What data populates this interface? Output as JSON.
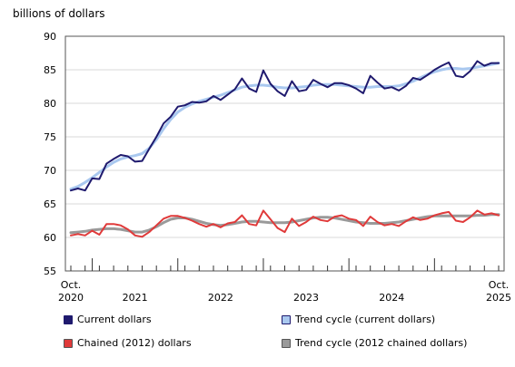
{
  "chart_data": {
    "type": "line",
    "ylabel": "billions of dollars",
    "ylim": [
      55,
      90
    ],
    "yticks": [
      55,
      60,
      65,
      70,
      75,
      80,
      85,
      90
    ],
    "grid": true,
    "x_start": "2020-10",
    "x_end": "2025-10",
    "xtick_labels": [
      {
        "line1": "Oct.",
        "line2": "2020"
      },
      {
        "line1": "",
        "line2": "2021"
      },
      {
        "line1": "",
        "line2": "2022"
      },
      {
        "line1": "",
        "line2": "2023"
      },
      {
        "line1": "",
        "line2": "2024"
      },
      {
        "line1": "Oct.",
        "line2": "2025"
      }
    ],
    "x": [
      "2020-10",
      "2020-11",
      "2020-12",
      "2021-01",
      "2021-02",
      "2021-03",
      "2021-04",
      "2021-05",
      "2021-06",
      "2021-07",
      "2021-08",
      "2021-09",
      "2021-10",
      "2021-11",
      "2021-12",
      "2022-01",
      "2022-02",
      "2022-03",
      "2022-04",
      "2022-05",
      "2022-06",
      "2022-07",
      "2022-08",
      "2022-09",
      "2022-10",
      "2022-11",
      "2022-12",
      "2023-01",
      "2023-02",
      "2023-03",
      "2023-04",
      "2023-05",
      "2023-06",
      "2023-07",
      "2023-08",
      "2023-09",
      "2023-10",
      "2023-11",
      "2023-12",
      "2024-01",
      "2024-02",
      "2024-03",
      "2024-04",
      "2024-05",
      "2024-06",
      "2024-07",
      "2024-08",
      "2024-09",
      "2024-10",
      "2024-11",
      "2024-12",
      "2025-01",
      "2025-02",
      "2025-03",
      "2025-04",
      "2025-05",
      "2025-06",
      "2025-07",
      "2025-08",
      "2025-09",
      "2025-10"
    ],
    "series": [
      {
        "name": "Current dollars",
        "color": "#1f1a6e",
        "width": 2,
        "values": [
          67.0,
          67.3,
          67.0,
          68.8,
          68.7,
          71.0,
          71.7,
          72.3,
          72.1,
          71.3,
          71.4,
          73.2,
          75.0,
          77.0,
          78.0,
          79.5,
          79.7,
          80.2,
          80.1,
          80.3,
          81.1,
          80.5,
          81.3,
          82.1,
          83.7,
          82.2,
          81.7,
          84.9,
          82.9,
          81.8,
          81.1,
          83.3,
          81.8,
          82.0,
          83.5,
          82.9,
          82.4,
          83.0,
          83.0,
          82.7,
          82.2,
          81.5,
          84.1,
          83.1,
          82.2,
          82.4,
          81.9,
          82.6,
          83.8,
          83.5,
          84.2,
          85.0,
          85.6,
          86.1,
          84.1,
          83.9,
          84.8,
          86.3,
          85.6,
          86.0,
          86.0
        ]
      },
      {
        "name": "Trend cycle (current dollars)",
        "color": "#a9c8ef",
        "width": 3,
        "values": [
          67.2,
          67.6,
          68.2,
          68.9,
          69.7,
          70.5,
          71.2,
          71.7,
          72.0,
          72.2,
          72.5,
          73.3,
          74.6,
          76.2,
          77.6,
          78.7,
          79.4,
          79.9,
          80.3,
          80.6,
          80.9,
          81.2,
          81.6,
          82.0,
          82.4,
          82.6,
          82.7,
          82.7,
          82.6,
          82.4,
          82.3,
          82.3,
          82.4,
          82.5,
          82.7,
          82.8,
          82.8,
          82.8,
          82.7,
          82.6,
          82.5,
          82.4,
          82.4,
          82.5,
          82.5,
          82.5,
          82.6,
          82.9,
          83.3,
          83.8,
          84.3,
          84.7,
          85.0,
          85.2,
          85.2,
          85.1,
          85.2,
          85.4,
          85.6,
          85.8,
          86.0
        ]
      },
      {
        "name": "Chained (2012) dollars",
        "color": "#e03a3a",
        "width": 2,
        "values": [
          60.3,
          60.5,
          60.3,
          61.0,
          60.4,
          62.0,
          62.0,
          61.8,
          61.2,
          60.3,
          60.1,
          60.8,
          61.8,
          62.8,
          63.2,
          63.2,
          62.9,
          62.5,
          62.0,
          61.6,
          62.0,
          61.5,
          62.1,
          62.3,
          63.3,
          62.0,
          61.8,
          64.0,
          62.7,
          61.4,
          60.8,
          62.8,
          61.7,
          62.3,
          63.1,
          62.6,
          62.4,
          63.1,
          63.3,
          62.8,
          62.6,
          61.7,
          63.1,
          62.3,
          61.8,
          62.0,
          61.7,
          62.4,
          63.0,
          62.6,
          62.8,
          63.3,
          63.6,
          63.8,
          62.5,
          62.3,
          63.0,
          64.0,
          63.4,
          63.6,
          63.3
        ]
      },
      {
        "name": "Trend cycle (2012 chained dollars)",
        "color": "#9a9a9a",
        "width": 3,
        "values": [
          60.7,
          60.8,
          60.9,
          61.1,
          61.2,
          61.3,
          61.3,
          61.2,
          61.0,
          60.8,
          60.8,
          61.1,
          61.6,
          62.2,
          62.7,
          62.9,
          62.9,
          62.7,
          62.4,
          62.1,
          61.9,
          61.8,
          61.9,
          62.1,
          62.3,
          62.4,
          62.4,
          62.3,
          62.2,
          62.2,
          62.2,
          62.3,
          62.5,
          62.7,
          62.9,
          63.0,
          63.0,
          62.9,
          62.7,
          62.5,
          62.3,
          62.2,
          62.1,
          62.1,
          62.1,
          62.2,
          62.3,
          62.5,
          62.7,
          62.9,
          63.1,
          63.2,
          63.2,
          63.2,
          63.2,
          63.2,
          63.2,
          63.3,
          63.3,
          63.4,
          63.4
        ]
      }
    ]
  },
  "legend": {
    "items": [
      {
        "label": "Current dollars",
        "color": "#1f1a6e"
      },
      {
        "label": "Trend cycle (current dollars)",
        "color": "#a9c8ef"
      },
      {
        "label": "Chained (2012) dollars",
        "color": "#e03a3a"
      },
      {
        "label": "Trend cycle (2012 chained dollars)",
        "color": "#9a9a9a"
      }
    ]
  }
}
